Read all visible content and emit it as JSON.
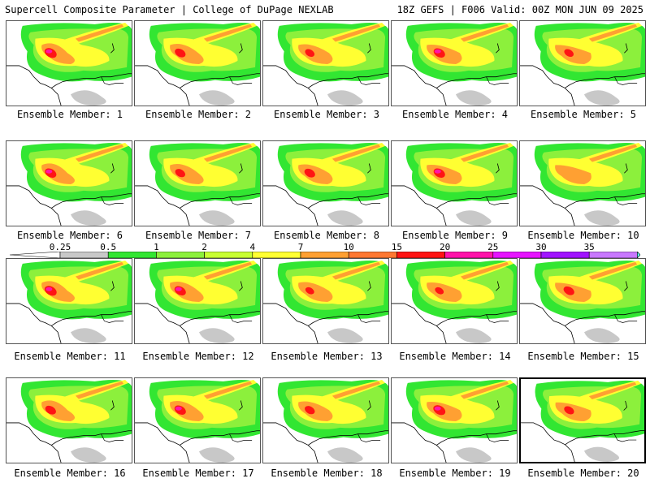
{
  "header": {
    "left": "Supercell Composite Parameter | College of DuPage NEXLAB",
    "right": "18Z GEFS | F006 Valid: 00Z MON JUN 09 2025"
  },
  "members": [
    {
      "label": "Ensemble Member: 1",
      "intensity": 0.9
    },
    {
      "label": "Ensemble Member: 2",
      "intensity": 0.8
    },
    {
      "label": "Ensemble Member: 3",
      "intensity": 0.7
    },
    {
      "label": "Ensemble Member: 4",
      "intensity": 0.85
    },
    {
      "label": "Ensemble Member: 5",
      "intensity": 0.7
    },
    {
      "label": "Ensemble Member: 6",
      "intensity": 0.85
    },
    {
      "label": "Ensemble Member: 7",
      "intensity": 0.75
    },
    {
      "label": "Ensemble Member: 8",
      "intensity": 0.8
    },
    {
      "label": "Ensemble Member: 9",
      "intensity": 0.85
    },
    {
      "label": "Ensemble Member: 10",
      "intensity": 0.6
    },
    {
      "label": "Ensemble Member: 11",
      "intensity": 0.9
    },
    {
      "label": "Ensemble Member: 12",
      "intensity": 0.85
    },
    {
      "label": "Ensemble Member: 13",
      "intensity": 0.65
    },
    {
      "label": "Ensemble Member: 14",
      "intensity": 0.65
    },
    {
      "label": "Ensemble Member: 15",
      "intensity": 0.8
    },
    {
      "label": "Ensemble Member: 16",
      "intensity": 0.8
    },
    {
      "label": "Ensemble Member: 17",
      "intensity": 0.85
    },
    {
      "label": "Ensemble Member: 18",
      "intensity": 0.75
    },
    {
      "label": "Ensemble Member: 19",
      "intensity": 0.9
    },
    {
      "label": "Ensemble Member: 20",
      "intensity": 0.75,
      "selected": true
    }
  ],
  "colorbar": {
    "levels": [
      "0.25",
      "0.5",
      "1",
      "2",
      "4",
      "7",
      "10",
      "15",
      "20",
      "25",
      "30",
      "35"
    ],
    "colors": [
      "#c8c8c8",
      "#32e632",
      "#8cf03c",
      "#c8ff32",
      "#ffff32",
      "#ffa032",
      "#ff7832",
      "#ff1414",
      "#ff14aa",
      "#e614ff",
      "#a014ff",
      "#c878ff",
      "#64ffff"
    ]
  }
}
